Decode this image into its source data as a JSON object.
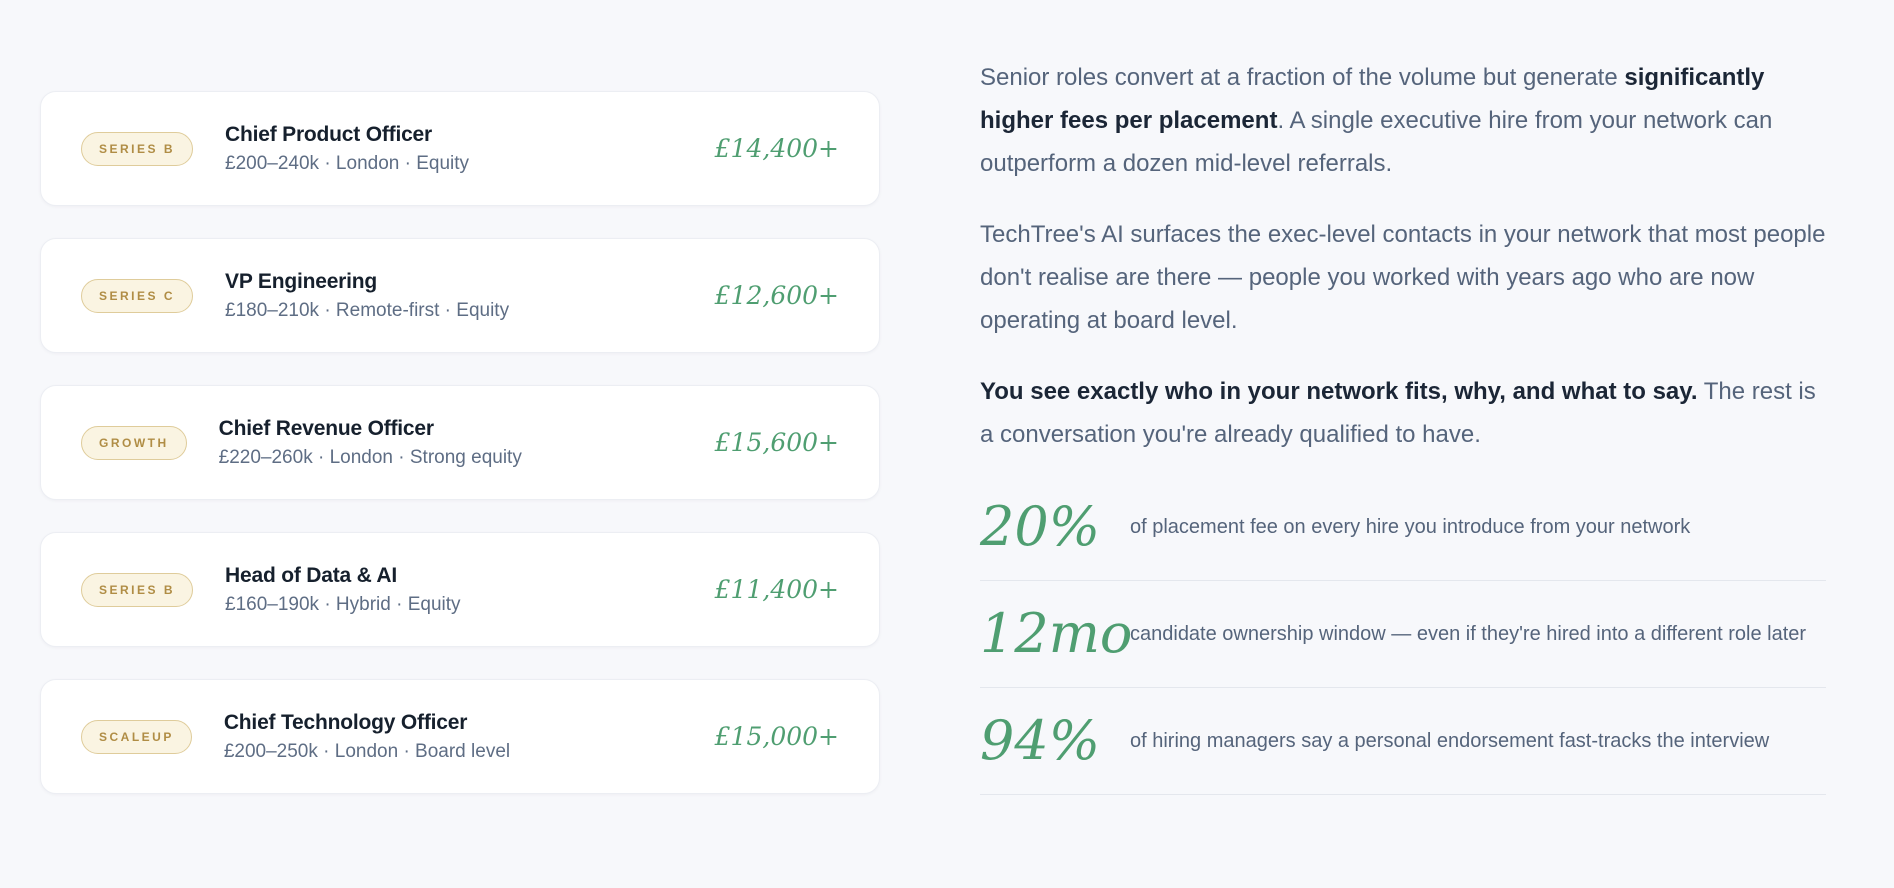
{
  "page": {
    "background_color": "#f7f8fb"
  },
  "colors": {
    "accent_green": "#4f9e71",
    "badge_background": "#faf4e2",
    "badge_border": "#dfcc9b",
    "badge_text": "#b08d45",
    "job_title_text": "#16202d",
    "muted_text": "#55647b",
    "card_background": "#ffffff",
    "divider": "#e4e7ed"
  },
  "job_list": {
    "cards": [
      {
        "badge": "SERIES B",
        "title": "Chief Product Officer",
        "meta": "£200–240k · London · Equity",
        "fee": "£14,400+"
      },
      {
        "badge": "SERIES C",
        "title": "VP Engineering",
        "meta": "£180–210k · Remote-first · Equity",
        "fee": "£12,600+"
      },
      {
        "badge": "GROWTH",
        "title": "Chief Revenue Officer",
        "meta": "£220–260k · London · Strong equity",
        "fee": "£15,600+"
      },
      {
        "badge": "SERIES B",
        "title": "Head of Data & AI",
        "meta": "£160–190k · Hybrid · Equity",
        "fee": "£11,400+"
      },
      {
        "badge": "SCALEUP",
        "title": "Chief Technology Officer",
        "meta": "£200–250k · London · Board level",
        "fee": "£15,000+"
      }
    ]
  },
  "content": {
    "paragraphs": [
      {
        "pre": "Senior roles convert at a fraction of the volume but generate ",
        "bold": "significantly higher fees per placement",
        "post": ". A single executive hire from your network can outperform a dozen mid-level referrals."
      },
      {
        "pre": "TechTree's AI surfaces the exec-level contacts in your network that most people don't realise are there — people you worked with years ago who are now operating at board level.",
        "bold": "",
        "post": ""
      },
      {
        "pre": "",
        "bold": "You see exactly who in your network fits, why, and what to say.",
        "post": " The rest is a conversation you're already qualified to have."
      }
    ],
    "stats": [
      {
        "value": "20%",
        "label": "of placement fee on every hire you introduce from your network"
      },
      {
        "value": "12mo",
        "label": "candidate ownership window — even if they're hired into a different role later"
      },
      {
        "value": "94%",
        "label": "of hiring managers say a personal endorsement fast-tracks the interview"
      }
    ]
  }
}
